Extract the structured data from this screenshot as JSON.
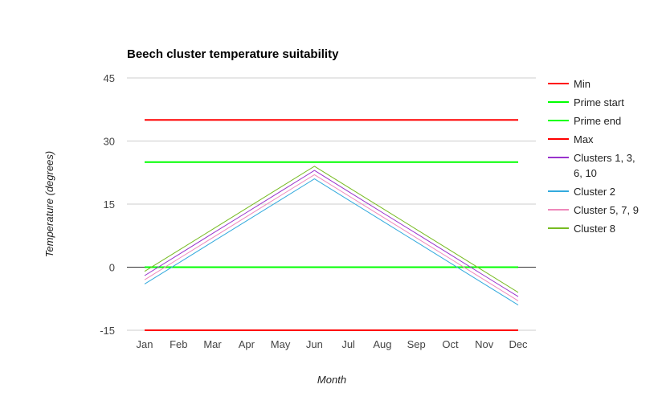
{
  "chart_data": {
    "type": "line",
    "title": "Beech cluster temperature suitability",
    "xlabel": "Month",
    "ylabel": "Temperature (degrees)",
    "categories": [
      "Jan",
      "Feb",
      "Mar",
      "Apr",
      "May",
      "Jun",
      "Jul",
      "Aug",
      "Sep",
      "Oct",
      "Nov",
      "Dec"
    ],
    "ylim": [
      -15,
      45
    ],
    "yticks": [
      "45",
      "30",
      "15",
      "0",
      "-15"
    ],
    "yticks_values": [
      45,
      30,
      15,
      0,
      -15
    ],
    "grid": true,
    "legend_position": "right",
    "series": [
      {
        "name": "Min",
        "color": "#ff0000",
        "values": [
          -15,
          -15,
          -15,
          -15,
          -15,
          -15,
          -15,
          -15,
          -15,
          -15,
          -15,
          -15
        ]
      },
      {
        "name": "Prime start",
        "color": "#00ff00",
        "values": [
          0,
          0,
          0,
          0,
          0,
          0,
          0,
          0,
          0,
          0,
          0,
          0
        ]
      },
      {
        "name": "Prime end",
        "color": "#00ff00",
        "values": [
          25,
          25,
          25,
          25,
          25,
          25,
          25,
          25,
          25,
          25,
          25,
          25
        ]
      },
      {
        "name": "Max",
        "color": "#ff0000",
        "values": [
          35,
          35,
          35,
          35,
          35,
          35,
          35,
          35,
          35,
          35,
          35,
          35
        ]
      },
      {
        "name": "Clusters 1, 3, 6, 10",
        "color": "#9933cc",
        "values": [
          -2,
          3,
          8,
          13,
          18,
          23,
          18,
          13,
          8,
          3,
          -2,
          -7
        ]
      },
      {
        "name": "Cluster 2",
        "color": "#33aadd",
        "values": [
          -4,
          1,
          6,
          11,
          16,
          21,
          16,
          11,
          6,
          1,
          -4,
          -9
        ]
      },
      {
        "name": "Cluster 5, 7, 9",
        "color": "#ee88bb",
        "values": [
          -3,
          2,
          7,
          12,
          17,
          22,
          17,
          12,
          7,
          2,
          -3,
          -8
        ]
      },
      {
        "name": "Cluster 8",
        "color": "#77bb22",
        "values": [
          -1,
          4,
          9,
          14,
          19,
          24,
          19,
          14,
          9,
          4,
          -1,
          -6
        ]
      }
    ]
  }
}
